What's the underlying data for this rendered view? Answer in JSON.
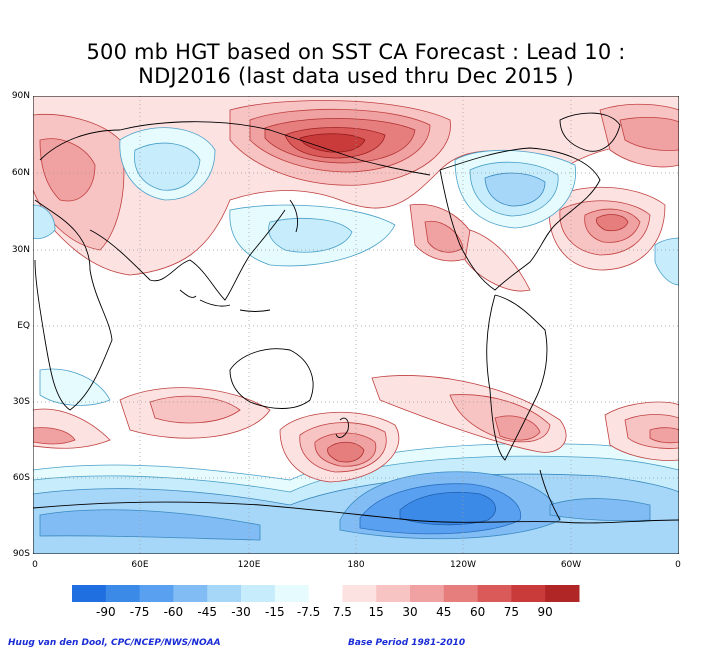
{
  "title": {
    "line1": "500 mb HGT based on SST CA Forecast : Lead 10 :",
    "line2": "NDJ2016 (last data used thru Dec 2015 )"
  },
  "axes": {
    "lat_ticks": [
      "90N",
      "60N",
      "30N",
      "EQ",
      "30S",
      "60S",
      "90S"
    ],
    "lon_ticks": [
      "0",
      "60E",
      "120E",
      "180",
      "120W",
      "60W",
      "0"
    ]
  },
  "colorbar": {
    "labels": [
      "-90",
      "-75",
      "-60",
      "-45",
      "-30",
      "-15",
      "-7.5",
      "7.5",
      "15",
      "30",
      "45",
      "60",
      "75",
      "90"
    ],
    "colors": [
      "#1f6fe0",
      "#3b8ae8",
      "#5aa0f0",
      "#82bcf5",
      "#a6d6f8",
      "#c7ecfb",
      "#e6fbfd",
      "#ffffff",
      "#fde2e2",
      "#f8c3c3",
      "#f0a1a1",
      "#e67e7e",
      "#da5a5a",
      "#c93b3b",
      "#b02525"
    ]
  },
  "footer": {
    "credit": "Huug van den Dool, CPC/NCEP/NWS/NOAA",
    "base_period": "Base Period 1981-2010"
  }
}
